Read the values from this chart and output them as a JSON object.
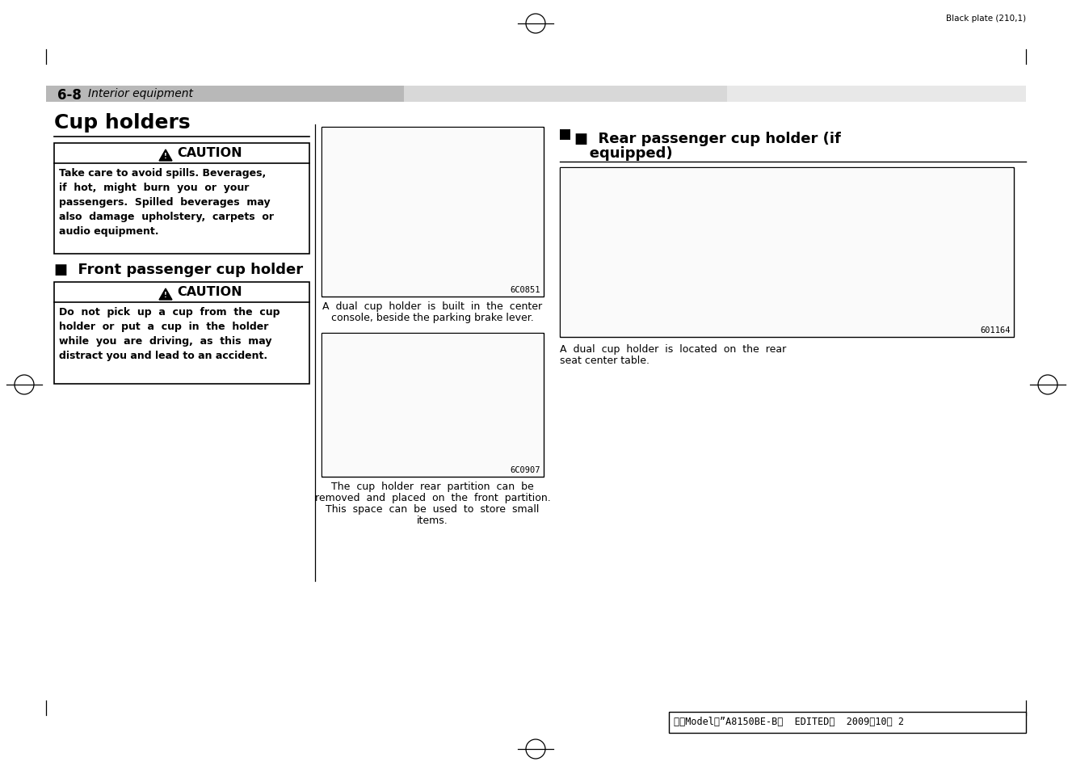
{
  "bg_color": "#ffffff",
  "top_marker_text": "Black plate (210,1)",
  "section_num": "6-8",
  "section_italic": "Interior equipment",
  "main_title": "Cup holders",
  "caution1_title": "CAUTION",
  "caution1_line1": "Take care to avoid spills. Beverages,",
  "caution1_line2": "if  hot,  might  burn  you  or  your",
  "caution1_line3": "passengers.  Spilled  beverages  may",
  "caution1_line4": "also  damage  upholstery,  carpets  or",
  "caution1_line5": "audio equipment.",
  "front_section": "■  Front passenger cup holder",
  "caution2_title": "CAUTION",
  "caution2_line1": "Do  not  pick  up  a  cup  from  the  cup",
  "caution2_line2": "holder  or  put  a  cup  in  the  holder",
  "caution2_line3": "while  you  are  driving,  as  this  may",
  "caution2_line4": "distract you and lead to an accident.",
  "img1_code": "6C0851",
  "img1_cap1": "A  dual  cup  holder  is  built  in  the  center",
  "img1_cap2": "console, beside the parking brake lever.",
  "img2_code": "6C0907",
  "img2_cap1": "The  cup  holder  rear  partition  can  be",
  "img2_cap2": "removed  and  placed  on  the  front  partition.",
  "img2_cap3": "This  space  can  be  used  to  store  small",
  "img2_cap4": "items.",
  "right_title1": "■  Rear passenger cup holder (if",
  "right_title2": "   equipped)",
  "img3_code": "601164",
  "img3_cap1": "A  dual  cup  holder  is  located  on  the  rear",
  "img3_cap2": "seat center table.",
  "footer_text": "北米Model１”A8150BE-B＂  EDITED：  2009／10／ 2",
  "gray_bar_color": "#b8b8b8",
  "box_bg": "#ffffff"
}
